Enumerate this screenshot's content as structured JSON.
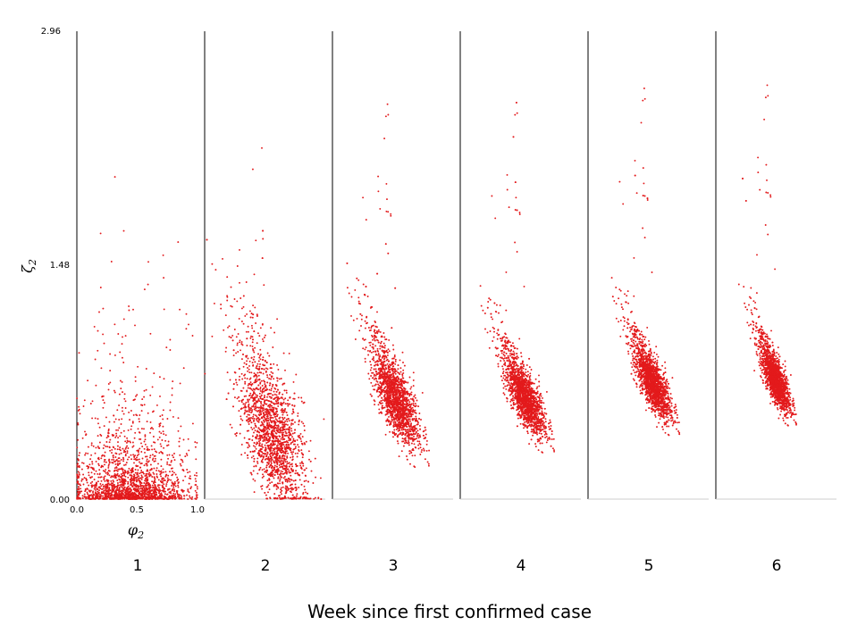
{
  "chart_data": {
    "type": "scatter",
    "layout": "small-multiples",
    "xlabel": "Week since first confirmed case",
    "panel_xlabel": "φ",
    "panel_xlabel_sub": "2",
    "ylabel": "ζ",
    "ylabel_sub": "2",
    "ylim": [
      0.0,
      2.96
    ],
    "yticks": [
      "0.00",
      "1.48",
      "2.96"
    ],
    "xlim": [
      0.0,
      1.0
    ],
    "xticks": [
      "0.0",
      "0.5",
      "1.0"
    ],
    "grid": false,
    "point_color": "#e31a1c",
    "panels": [
      {
        "week": "1",
        "points_approx": 2000,
        "center": {
          "x": 0.45,
          "y": 0.05
        },
        "spread": {
          "x": 0.26,
          "y": 0.25
        },
        "trend": 0.0,
        "skew": "right"
      },
      {
        "week": "2",
        "points_approx": 2000,
        "center": {
          "x": 0.55,
          "y": 0.45
        },
        "spread": {
          "x": 0.2,
          "y": 0.35
        },
        "trend": -0.55,
        "skew": "up"
      },
      {
        "week": "3",
        "points_approx": 2000,
        "center": {
          "x": 0.52,
          "y": 0.65
        },
        "spread": {
          "x": 0.12,
          "y": 0.22
        },
        "trend": -0.8,
        "skew": "up"
      },
      {
        "week": "4",
        "points_approx": 2000,
        "center": {
          "x": 0.53,
          "y": 0.66
        },
        "spread": {
          "x": 0.1,
          "y": 0.18
        },
        "trend": -0.88,
        "skew": "up"
      },
      {
        "week": "5",
        "points_approx": 2000,
        "center": {
          "x": 0.53,
          "y": 0.75
        },
        "spread": {
          "x": 0.09,
          "y": 0.17
        },
        "trend": -0.9,
        "skew": "up"
      },
      {
        "week": "6",
        "points_approx": 2000,
        "center": {
          "x": 0.49,
          "y": 0.77
        },
        "spread": {
          "x": 0.07,
          "y": 0.15
        },
        "trend": -0.9,
        "skew": "up"
      }
    ]
  }
}
